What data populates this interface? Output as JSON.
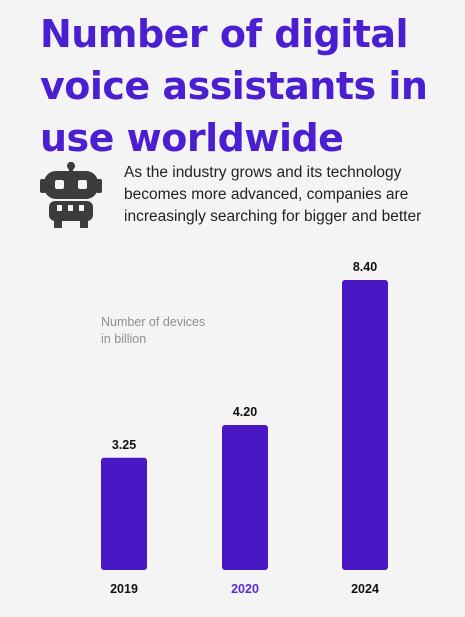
{
  "title": "Number of digital voice assistants in use worldwide",
  "description": "As the industry grows and its technology becomes more advanced, companies are increasingly searching for bigger and better",
  "icon": "robot-icon",
  "colors": {
    "accent": "#4b1ed1",
    "bar": "#4a17c4",
    "highlight_label": "#5a2bd6"
  },
  "chart_data": {
    "type": "bar",
    "title": "Number of digital voice assistants in use worldwide",
    "ylabel": [
      "Number of devices",
      "in billion"
    ],
    "xlabel": "",
    "categories": [
      "2019",
      "2020",
      "2024"
    ],
    "values": [
      3.25,
      4.2,
      8.4
    ],
    "value_labels": [
      "3.25",
      "4.20",
      "8.40"
    ],
    "highlight_category": "2020",
    "ylim": [
      0,
      8.4
    ],
    "grid": false,
    "legend": "none"
  }
}
